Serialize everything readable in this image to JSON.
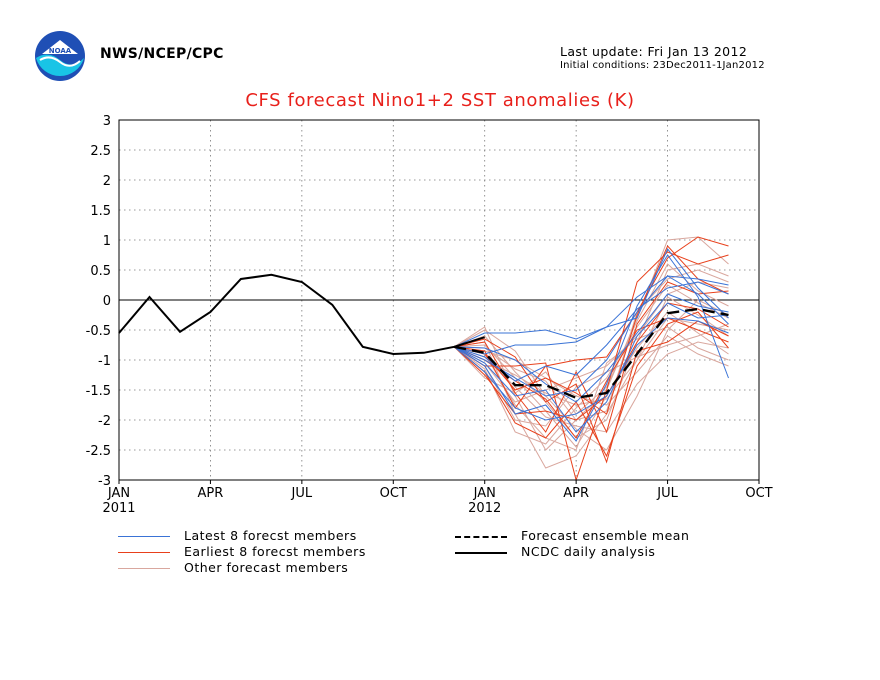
{
  "header": {
    "agency": "NWS/NCEP/CPC",
    "last_update": "Last update: Fri Jan 13 2012",
    "initial_conditions": "Initial conditions: 23Dec2011-1Jan2012"
  },
  "legend": {
    "latest": "Latest 8 forecst members",
    "earliest": "Earliest 8 forecst members",
    "other": "Other forecast members",
    "mean": "Forecast ensemble mean",
    "analysis": "NCDC daily analysis"
  },
  "colors": {
    "latest": "#3a73d6",
    "earliest": "#e8401b",
    "other": "#d9a79e",
    "title": "#e8201b",
    "logo_blue": "#1f4fb5",
    "logo_cyan": "#19c4e6"
  },
  "chart_data": {
    "type": "line",
    "title": "CFS forecast Nino1+2 SST anomalies (K)",
    "ylim": [
      -3,
      3
    ],
    "yticks": [
      "3",
      "2.5",
      "2",
      "1.5",
      "1",
      "0.5",
      "0",
      "-0.5",
      "-1",
      "-1.5",
      "-2",
      "-2.5",
      "-3"
    ],
    "xticks": [
      {
        "month": 0,
        "label": "JAN",
        "year": "2011"
      },
      {
        "month": 3,
        "label": "APR",
        "year": ""
      },
      {
        "month": 6,
        "label": "JUL",
        "year": ""
      },
      {
        "month": 9,
        "label": "OCT",
        "year": ""
      },
      {
        "month": 12,
        "label": "JAN",
        "year": "2012"
      },
      {
        "month": 15,
        "label": "APR",
        "year": ""
      },
      {
        "month": 18,
        "label": "JUL",
        "year": ""
      },
      {
        "month": 21,
        "label": "OCT",
        "year": ""
      }
    ],
    "x_range_months": [
      0,
      21
    ],
    "grid": true,
    "legend_position": "bottom",
    "zero_line": true,
    "analysis": {
      "name": "NCDC daily analysis",
      "x": [
        0,
        1,
        2,
        3,
        4,
        5,
        6,
        7,
        8,
        9,
        10,
        11,
        12
      ],
      "y": [
        -0.55,
        0.05,
        -0.53,
        -0.2,
        0.35,
        0.42,
        0.3,
        -0.08,
        -0.78,
        -0.9,
        -0.88,
        -0.78,
        -0.62
      ]
    },
    "ensemble_mean": {
      "name": "Forecast ensemble mean",
      "x": [
        11,
        12,
        13,
        14,
        15,
        16,
        17,
        18,
        19,
        20
      ],
      "y": [
        -0.78,
        -0.88,
        -1.42,
        -1.42,
        -1.63,
        -1.55,
        -0.9,
        -0.22,
        -0.15,
        -0.25
      ]
    },
    "latest_members": {
      "name": "Latest 8 forecst members",
      "x": [
        11,
        12,
        13,
        14,
        15,
        16,
        17,
        18,
        19,
        20
      ],
      "series": [
        [
          -0.78,
          -0.55,
          -0.55,
          -0.5,
          -0.65,
          -0.45,
          0.05,
          0.4,
          0.35,
          0.25
        ],
        [
          -0.78,
          -0.9,
          -0.75,
          -0.75,
          -0.7,
          -0.45,
          -0.3,
          0.85,
          0.2,
          -0.3
        ],
        [
          -0.78,
          -1.1,
          -1.9,
          -1.75,
          -2.35,
          -1.4,
          -0.1,
          0.75,
          0.05,
          -1.3
        ],
        [
          -0.78,
          -1.0,
          -1.3,
          -1.6,
          -1.5,
          -1.0,
          -0.2,
          0.4,
          0.1,
          -0.4
        ],
        [
          -0.78,
          -1.2,
          -1.8,
          -2.0,
          -1.9,
          -1.6,
          -0.75,
          -0.3,
          -0.35,
          -0.55
        ],
        [
          -0.78,
          -0.8,
          -1.0,
          -1.4,
          -1.7,
          -1.2,
          -0.55,
          0.1,
          -0.1,
          -0.2
        ],
        [
          -0.78,
          -0.95,
          -1.35,
          -1.1,
          -1.25,
          -0.75,
          -0.15,
          0.2,
          0.3,
          0.1
        ],
        [
          -0.78,
          -1.05,
          -1.6,
          -1.5,
          -2.2,
          -1.7,
          -0.6,
          -0.05,
          -0.3,
          -0.25
        ]
      ]
    },
    "earliest_members": {
      "name": "Earliest 8 forecst members",
      "x": [
        11,
        12,
        13,
        14,
        15,
        16,
        17,
        18,
        19,
        20
      ],
      "series": [
        [
          -0.78,
          -0.7,
          -1.55,
          -2.2,
          -1.2,
          -2.2,
          -0.4,
          0.3,
          0.1,
          0.15
        ],
        [
          -0.78,
          -0.85,
          -1.8,
          -1.1,
          -1.0,
          -0.95,
          -0.2,
          0.7,
          1.05,
          0.9
        ],
        [
          -0.78,
          -1.1,
          -1.1,
          -1.05,
          -3.0,
          -1.5,
          0.3,
          0.8,
          0.6,
          0.75
        ],
        [
          -0.78,
          -1.2,
          -2.05,
          -2.3,
          -1.7,
          -2.6,
          -1.1,
          -0.4,
          -0.2,
          -0.8
        ],
        [
          -0.78,
          -0.9,
          -1.5,
          -1.3,
          -1.55,
          -1.9,
          -0.25,
          0.9,
          0.35,
          0.1
        ],
        [
          -0.78,
          -1.0,
          -1.35,
          -1.65,
          -2.3,
          -1.35,
          -0.5,
          -0.3,
          -0.5,
          -0.7
        ],
        [
          -0.78,
          -0.65,
          -0.95,
          -1.7,
          -1.4,
          -2.7,
          -0.85,
          -0.7,
          -0.35,
          -0.6
        ],
        [
          -0.78,
          -1.25,
          -1.9,
          -1.85,
          -2.0,
          -1.6,
          -0.7,
          -0.05,
          -0.15,
          -0.45
        ]
      ]
    },
    "other_members": {
      "name": "Other forecast members",
      "x": [
        11,
        12,
        13,
        14,
        15,
        16,
        17,
        18,
        19,
        20
      ],
      "series": [
        [
          -0.78,
          -0.45,
          -1.6,
          -2.5,
          -2.0,
          -1.5,
          -0.3,
          1.0,
          1.05,
          0.6
        ],
        [
          -0.78,
          -0.6,
          -1.2,
          -1.7,
          -2.3,
          -2.0,
          -0.7,
          0.5,
          0.6,
          0.4
        ],
        [
          -0.78,
          -0.7,
          -1.9,
          -2.8,
          -2.6,
          -1.9,
          -1.0,
          -0.3,
          -0.4,
          -0.5
        ],
        [
          -0.78,
          -0.85,
          -1.0,
          -1.3,
          -1.6,
          -1.75,
          -1.2,
          -0.6,
          -0.9,
          -1.1
        ],
        [
          -0.78,
          -1.15,
          -2.2,
          -2.4,
          -1.8,
          -1.3,
          -0.45,
          0.25,
          -0.05,
          -0.3
        ],
        [
          -0.78,
          -0.95,
          -1.45,
          -1.95,
          -2.1,
          -2.2,
          -1.4,
          -0.9,
          -0.7,
          -0.8
        ],
        [
          -0.78,
          -1.05,
          -1.7,
          -1.5,
          -1.3,
          -1.1,
          -0.6,
          0.1,
          0.3,
          0.2
        ],
        [
          -0.78,
          -0.75,
          -1.3,
          -1.85,
          -2.45,
          -1.6,
          -0.8,
          -0.2,
          -0.55,
          -0.9
        ],
        [
          -0.78,
          -1.3,
          -1.55,
          -1.2,
          -1.9,
          -1.45,
          -0.35,
          0.6,
          0.15,
          -0.1
        ],
        [
          -0.78,
          -0.5,
          -0.85,
          -1.6,
          -2.15,
          -2.5,
          -1.6,
          -0.5,
          0.0,
          -0.25
        ],
        [
          -0.78,
          -1.1,
          -2.0,
          -2.1,
          -1.45,
          -1.2,
          -0.95,
          -0.75,
          -0.6,
          -0.4
        ],
        [
          -0.78,
          -0.8,
          -1.15,
          -1.35,
          -2.0,
          -1.85,
          -0.2,
          0.35,
          0.5,
          0.3
        ],
        [
          -0.78,
          -0.9,
          -1.75,
          -2.3,
          -2.5,
          -1.05,
          -0.65,
          -0.45,
          -0.8,
          -1.0
        ],
        [
          -0.78,
          -1.0,
          -1.25,
          -1.55,
          -1.75,
          -1.65,
          -1.0,
          0.05,
          -0.25,
          -0.6
        ]
      ]
    }
  }
}
